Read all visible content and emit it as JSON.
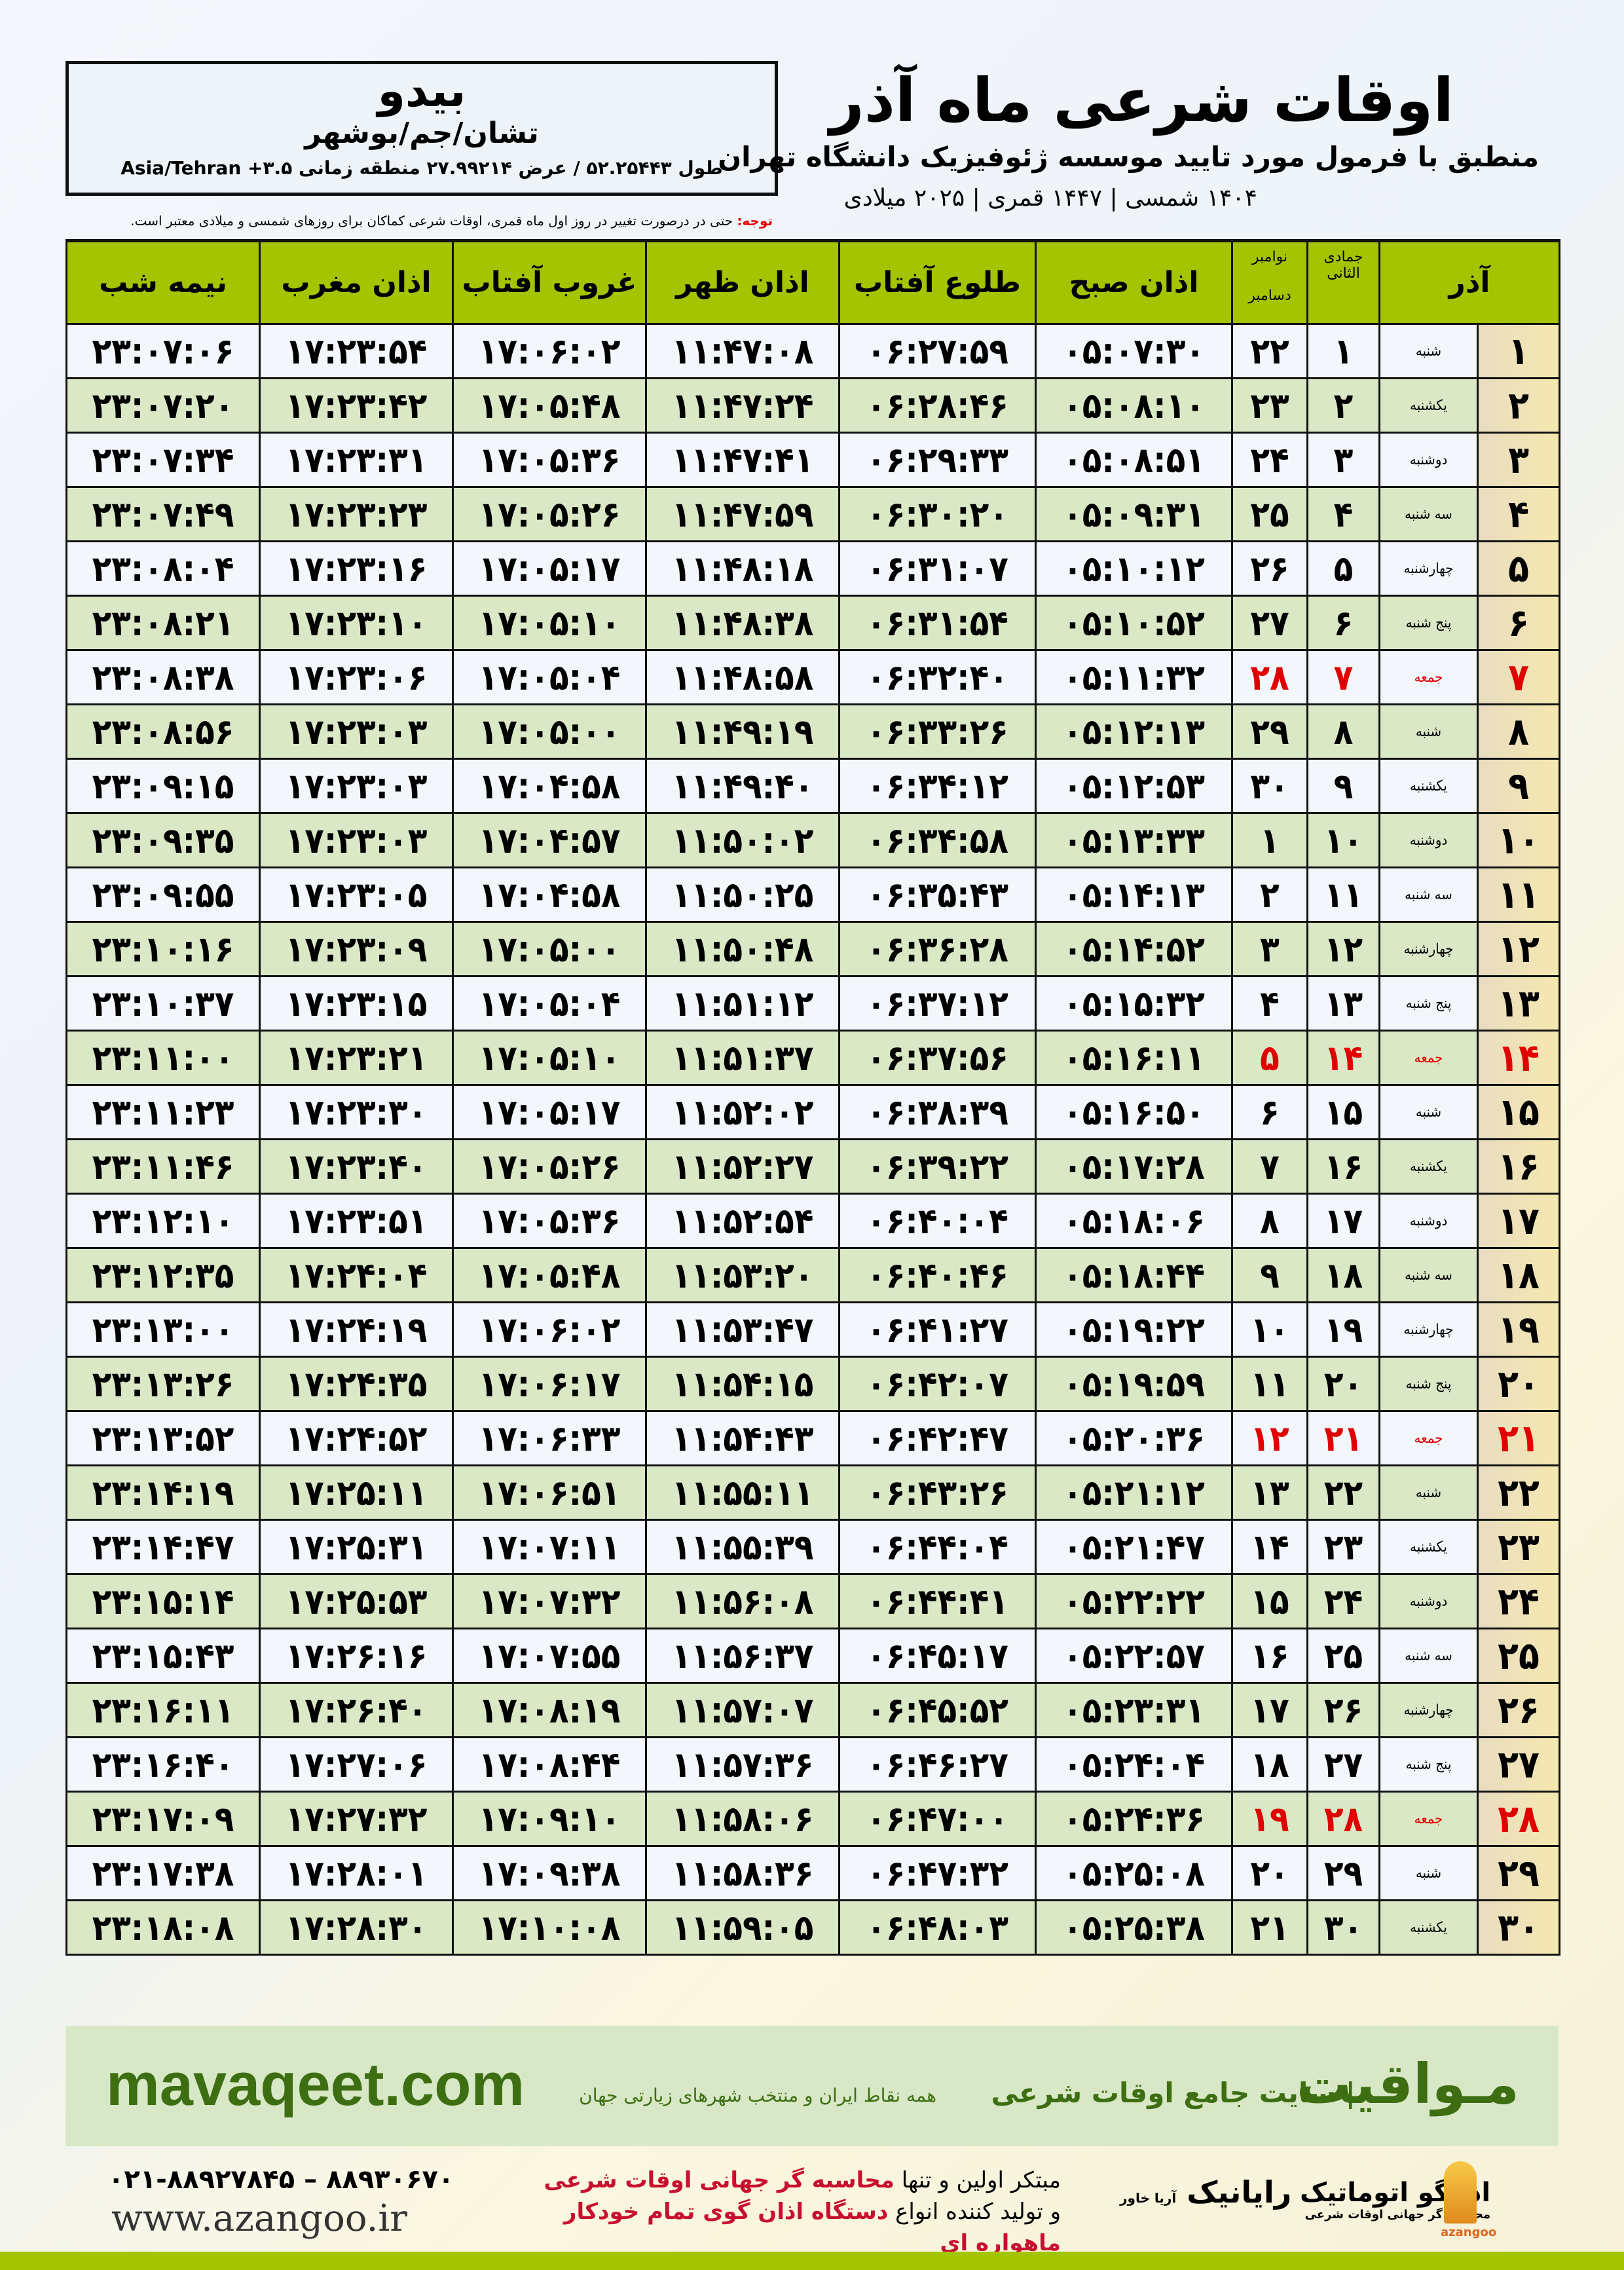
{
  "header": {
    "city": "بیدو",
    "region": "تشان/جم/بوشهر",
    "coordinates": "طول ۵۲.۲۵۴۴۳ / عرض ۲۷.۹۹۲۱۴ منطقه زمانی ۳.۵+ Asia/Tehran",
    "title": "اوقات شرعی ماه آذر",
    "subtitle": "منطبق با فرمول مورد تایید موسسه ژئوفیزیک دانشگاه تهران",
    "years": "۱۴۰۴ شمسی | ۱۴۴۷ قمری | ۲۰۲۵ میلادی",
    "note_label": "توجه:",
    "note_text": " حتی در درصورت تغییر در روز اول ماه قمری، اوقات شرعی کماکان برای روزهای شمسی و میلادی معتبر است."
  },
  "columns": {
    "shamsi_month": "آذر",
    "hijri_month": "جمادی الثانی",
    "gregorian_month_1": "نوامبر",
    "gregorian_month_2": "دسامبر",
    "fajr": "اذان صبح",
    "sunrise": "طلوع آفتاب",
    "dhuhr": "اذان ظهر",
    "sunset": "غروب آفتاب",
    "maghrib": "اذان مغرب",
    "midnight": "نیمه شب"
  },
  "colors": {
    "header_green": "#a4c400",
    "friday_red": "#e00000",
    "row_alt": "#dae8c6",
    "brand_green": "#3d6e12"
  },
  "rows": [
    {
      "day": "۱",
      "weekday": "شنبه",
      "hijri": "۱",
      "greg": "۲۲",
      "fajr": "۰۵:۰۷:۳۰",
      "sunrise": "۰۶:۲۷:۵۹",
      "dhuhr": "۱۱:۴۷:۰۸",
      "sunset": "۱۷:۰۶:۰۲",
      "maghrib": "۱۷:۲۳:۵۴",
      "midnight": "۲۳:۰۷:۰۶"
    },
    {
      "day": "۲",
      "weekday": "یکشنبه",
      "hijri": "۲",
      "greg": "۲۳",
      "fajr": "۰۵:۰۸:۱۰",
      "sunrise": "۰۶:۲۸:۴۶",
      "dhuhr": "۱۱:۴۷:۲۴",
      "sunset": "۱۷:۰۵:۴۸",
      "maghrib": "۱۷:۲۳:۴۲",
      "midnight": "۲۳:۰۷:۲۰"
    },
    {
      "day": "۳",
      "weekday": "دوشنبه",
      "hijri": "۳",
      "greg": "۲۴",
      "fajr": "۰۵:۰۸:۵۱",
      "sunrise": "۰۶:۲۹:۳۳",
      "dhuhr": "۱۱:۴۷:۴۱",
      "sunset": "۱۷:۰۵:۳۶",
      "maghrib": "۱۷:۲۳:۳۱",
      "midnight": "۲۳:۰۷:۳۴"
    },
    {
      "day": "۴",
      "weekday": "سه شنبه",
      "hijri": "۴",
      "greg": "۲۵",
      "fajr": "۰۵:۰۹:۳۱",
      "sunrise": "۰۶:۳۰:۲۰",
      "dhuhr": "۱۱:۴۷:۵۹",
      "sunset": "۱۷:۰۵:۲۶",
      "maghrib": "۱۷:۲۳:۲۳",
      "midnight": "۲۳:۰۷:۴۹"
    },
    {
      "day": "۵",
      "weekday": "چهارشنبه",
      "hijri": "۵",
      "greg": "۲۶",
      "fajr": "۰۵:۱۰:۱۲",
      "sunrise": "۰۶:۳۱:۰۷",
      "dhuhr": "۱۱:۴۸:۱۸",
      "sunset": "۱۷:۰۵:۱۷",
      "maghrib": "۱۷:۲۳:۱۶",
      "midnight": "۲۳:۰۸:۰۴"
    },
    {
      "day": "۶",
      "weekday": "پنج شنبه",
      "hijri": "۶",
      "greg": "۲۷",
      "fajr": "۰۵:۱۰:۵۲",
      "sunrise": "۰۶:۳۱:۵۴",
      "dhuhr": "۱۱:۴۸:۳۸",
      "sunset": "۱۷:۰۵:۱۰",
      "maghrib": "۱۷:۲۳:۱۰",
      "midnight": "۲۳:۰۸:۲۱"
    },
    {
      "day": "۷",
      "weekday": "جمعه",
      "hijri": "۷",
      "greg": "۲۸",
      "fajr": "۰۵:۱۱:۳۲",
      "sunrise": "۰۶:۳۲:۴۰",
      "dhuhr": "۱۱:۴۸:۵۸",
      "sunset": "۱۷:۰۵:۰۴",
      "maghrib": "۱۷:۲۳:۰۶",
      "midnight": "۲۳:۰۸:۳۸",
      "friday": true
    },
    {
      "day": "۸",
      "weekday": "شنبه",
      "hijri": "۸",
      "greg": "۲۹",
      "fajr": "۰۵:۱۲:۱۳",
      "sunrise": "۰۶:۳۳:۲۶",
      "dhuhr": "۱۱:۴۹:۱۹",
      "sunset": "۱۷:۰۵:۰۰",
      "maghrib": "۱۷:۲۳:۰۳",
      "midnight": "۲۳:۰۸:۵۶"
    },
    {
      "day": "۹",
      "weekday": "یکشنبه",
      "hijri": "۹",
      "greg": "۳۰",
      "fajr": "۰۵:۱۲:۵۳",
      "sunrise": "۰۶:۳۴:۱۲",
      "dhuhr": "۱۱:۴۹:۴۰",
      "sunset": "۱۷:۰۴:۵۸",
      "maghrib": "۱۷:۲۳:۰۳",
      "midnight": "۲۳:۰۹:۱۵"
    },
    {
      "day": "۱۰",
      "weekday": "دوشنبه",
      "hijri": "۱۰",
      "greg": "۱",
      "fajr": "۰۵:۱۳:۳۳",
      "sunrise": "۰۶:۳۴:۵۸",
      "dhuhr": "۱۱:۵۰:۰۲",
      "sunset": "۱۷:۰۴:۵۷",
      "maghrib": "۱۷:۲۳:۰۳",
      "midnight": "۲۳:۰۹:۳۵"
    },
    {
      "day": "۱۱",
      "weekday": "سه شنبه",
      "hijri": "۱۱",
      "greg": "۲",
      "fajr": "۰۵:۱۴:۱۳",
      "sunrise": "۰۶:۳۵:۴۳",
      "dhuhr": "۱۱:۵۰:۲۵",
      "sunset": "۱۷:۰۴:۵۸",
      "maghrib": "۱۷:۲۳:۰۵",
      "midnight": "۲۳:۰۹:۵۵"
    },
    {
      "day": "۱۲",
      "weekday": "چهارشنبه",
      "hijri": "۱۲",
      "greg": "۳",
      "fajr": "۰۵:۱۴:۵۲",
      "sunrise": "۰۶:۳۶:۲۸",
      "dhuhr": "۱۱:۵۰:۴۸",
      "sunset": "۱۷:۰۵:۰۰",
      "maghrib": "۱۷:۲۳:۰۹",
      "midnight": "۲۳:۱۰:۱۶"
    },
    {
      "day": "۱۳",
      "weekday": "پنج شنبه",
      "hijri": "۱۳",
      "greg": "۴",
      "fajr": "۰۵:۱۵:۳۲",
      "sunrise": "۰۶:۳۷:۱۲",
      "dhuhr": "۱۱:۵۱:۱۲",
      "sunset": "۱۷:۰۵:۰۴",
      "maghrib": "۱۷:۲۳:۱۵",
      "midnight": "۲۳:۱۰:۳۷"
    },
    {
      "day": "۱۴",
      "weekday": "جمعه",
      "hijri": "۱۴",
      "greg": "۵",
      "fajr": "۰۵:۱۶:۱۱",
      "sunrise": "۰۶:۳۷:۵۶",
      "dhuhr": "۱۱:۵۱:۳۷",
      "sunset": "۱۷:۰۵:۱۰",
      "maghrib": "۱۷:۲۳:۲۱",
      "midnight": "۲۳:۱۱:۰۰",
      "friday": true
    },
    {
      "day": "۱۵",
      "weekday": "شنبه",
      "hijri": "۱۵",
      "greg": "۶",
      "fajr": "۰۵:۱۶:۵۰",
      "sunrise": "۰۶:۳۸:۳۹",
      "dhuhr": "۱۱:۵۲:۰۲",
      "sunset": "۱۷:۰۵:۱۷",
      "maghrib": "۱۷:۲۳:۳۰",
      "midnight": "۲۳:۱۱:۲۳"
    },
    {
      "day": "۱۶",
      "weekday": "یکشنبه",
      "hijri": "۱۶",
      "greg": "۷",
      "fajr": "۰۵:۱۷:۲۸",
      "sunrise": "۰۶:۳۹:۲۲",
      "dhuhr": "۱۱:۵۲:۲۷",
      "sunset": "۱۷:۰۵:۲۶",
      "maghrib": "۱۷:۲۳:۴۰",
      "midnight": "۲۳:۱۱:۴۶"
    },
    {
      "day": "۱۷",
      "weekday": "دوشنبه",
      "hijri": "۱۷",
      "greg": "۸",
      "fajr": "۰۵:۱۸:۰۶",
      "sunrise": "۰۶:۴۰:۰۴",
      "dhuhr": "۱۱:۵۲:۵۴",
      "sunset": "۱۷:۰۵:۳۶",
      "maghrib": "۱۷:۲۳:۵۱",
      "midnight": "۲۳:۱۲:۱۰"
    },
    {
      "day": "۱۸",
      "weekday": "سه شنبه",
      "hijri": "۱۸",
      "greg": "۹",
      "fajr": "۰۵:۱۸:۴۴",
      "sunrise": "۰۶:۴۰:۴۶",
      "dhuhr": "۱۱:۵۳:۲۰",
      "sunset": "۱۷:۰۵:۴۸",
      "maghrib": "۱۷:۲۴:۰۴",
      "midnight": "۲۳:۱۲:۳۵"
    },
    {
      "day": "۱۹",
      "weekday": "چهارشنبه",
      "hijri": "۱۹",
      "greg": "۱۰",
      "fajr": "۰۵:۱۹:۲۲",
      "sunrise": "۰۶:۴۱:۲۷",
      "dhuhr": "۱۱:۵۳:۴۷",
      "sunset": "۱۷:۰۶:۰۲",
      "maghrib": "۱۷:۲۴:۱۹",
      "midnight": "۲۳:۱۳:۰۰"
    },
    {
      "day": "۲۰",
      "weekday": "پنج شنبه",
      "hijri": "۲۰",
      "greg": "۱۱",
      "fajr": "۰۵:۱۹:۵۹",
      "sunrise": "۰۶:۴۲:۰۷",
      "dhuhr": "۱۱:۵۴:۱۵",
      "sunset": "۱۷:۰۶:۱۷",
      "maghrib": "۱۷:۲۴:۳۵",
      "midnight": "۲۳:۱۳:۲۶"
    },
    {
      "day": "۲۱",
      "weekday": "جمعه",
      "hijri": "۲۱",
      "greg": "۱۲",
      "fajr": "۰۵:۲۰:۳۶",
      "sunrise": "۰۶:۴۲:۴۷",
      "dhuhr": "۱۱:۵۴:۴۳",
      "sunset": "۱۷:۰۶:۳۳",
      "maghrib": "۱۷:۲۴:۵۲",
      "midnight": "۲۳:۱۳:۵۲",
      "friday": true
    },
    {
      "day": "۲۲",
      "weekday": "شنبه",
      "hijri": "۲۲",
      "greg": "۱۳",
      "fajr": "۰۵:۲۱:۱۲",
      "sunrise": "۰۶:۴۳:۲۶",
      "dhuhr": "۱۱:۵۵:۱۱",
      "sunset": "۱۷:۰۶:۵۱",
      "maghrib": "۱۷:۲۵:۱۱",
      "midnight": "۲۳:۱۴:۱۹"
    },
    {
      "day": "۲۳",
      "weekday": "یکشنبه",
      "hijri": "۲۳",
      "greg": "۱۴",
      "fajr": "۰۵:۲۱:۴۷",
      "sunrise": "۰۶:۴۴:۰۴",
      "dhuhr": "۱۱:۵۵:۳۹",
      "sunset": "۱۷:۰۷:۱۱",
      "maghrib": "۱۷:۲۵:۳۱",
      "midnight": "۲۳:۱۴:۴۷"
    },
    {
      "day": "۲۴",
      "weekday": "دوشنبه",
      "hijri": "۲۴",
      "greg": "۱۵",
      "fajr": "۰۵:۲۲:۲۲",
      "sunrise": "۰۶:۴۴:۴۱",
      "dhuhr": "۱۱:۵۶:۰۸",
      "sunset": "۱۷:۰۷:۳۲",
      "maghrib": "۱۷:۲۵:۵۳",
      "midnight": "۲۳:۱۵:۱۴"
    },
    {
      "day": "۲۵",
      "weekday": "سه شنبه",
      "hijri": "۲۵",
      "greg": "۱۶",
      "fajr": "۰۵:۲۲:۵۷",
      "sunrise": "۰۶:۴۵:۱۷",
      "dhuhr": "۱۱:۵۶:۳۷",
      "sunset": "۱۷:۰۷:۵۵",
      "maghrib": "۱۷:۲۶:۱۶",
      "midnight": "۲۳:۱۵:۴۳"
    },
    {
      "day": "۲۶",
      "weekday": "چهارشنبه",
      "hijri": "۲۶",
      "greg": "۱۷",
      "fajr": "۰۵:۲۳:۳۱",
      "sunrise": "۰۶:۴۵:۵۲",
      "dhuhr": "۱۱:۵۷:۰۷",
      "sunset": "۱۷:۰۸:۱۹",
      "maghrib": "۱۷:۲۶:۴۰",
      "midnight": "۲۳:۱۶:۱۱"
    },
    {
      "day": "۲۷",
      "weekday": "پنج شنبه",
      "hijri": "۲۷",
      "greg": "۱۸",
      "fajr": "۰۵:۲۴:۰۴",
      "sunrise": "۰۶:۴۶:۲۷",
      "dhuhr": "۱۱:۵۷:۳۶",
      "sunset": "۱۷:۰۸:۴۴",
      "maghrib": "۱۷:۲۷:۰۶",
      "midnight": "۲۳:۱۶:۴۰"
    },
    {
      "day": "۲۸",
      "weekday": "جمعه",
      "hijri": "۲۸",
      "greg": "۱۹",
      "fajr": "۰۵:۲۴:۳۶",
      "sunrise": "۰۶:۴۷:۰۰",
      "dhuhr": "۱۱:۵۸:۰۶",
      "sunset": "۱۷:۰۹:۱۰",
      "maghrib": "۱۷:۲۷:۳۲",
      "midnight": "۲۳:۱۷:۰۹",
      "friday": true
    },
    {
      "day": "۲۹",
      "weekday": "شنبه",
      "hijri": "۲۹",
      "greg": "۲۰",
      "fajr": "۰۵:۲۵:۰۸",
      "sunrise": "۰۶:۴۷:۳۲",
      "dhuhr": "۱۱:۵۸:۳۶",
      "sunset": "۱۷:۰۹:۳۸",
      "maghrib": "۱۷:۲۸:۰۱",
      "midnight": "۲۳:۱۷:۳۸"
    },
    {
      "day": "۳۰",
      "weekday": "یکشنبه",
      "hijri": "۳۰",
      "greg": "۲۱",
      "fajr": "۰۵:۲۵:۳۸",
      "sunrise": "۰۶:۴۸:۰۳",
      "dhuhr": "۱۱:۵۹:۰۵",
      "sunset": "۱۷:۱۰:۰۸",
      "maghrib": "۱۷:۲۸:۳۰",
      "midnight": "۲۳:۱۸:۰۸"
    }
  ],
  "footer": {
    "site": "mavaqeet.com",
    "brand": "مـواقیت",
    "brand_tagline": "| سایت جامع اوقات شرعی",
    "brand_sub": "همه نقاط ایران و منتخب شهرهای زیارتی جهان",
    "phone": "۰۲۱-۸۸۹۲۷۸۴۵ – ۸۸۹۳۰۶۷۰",
    "web": "www.azangoo.ir",
    "promo_1a": "مبتکر اولین و تنها ",
    "promo_1b": "محاسبه گر جهانی اوقات شرعی",
    "promo_2a": "و تولید کننده انواع ",
    "promo_2b": "دستگاه اذان گوی تمام خودکار ماهواره ای",
    "logo_rayanik": "رایانیک",
    "logo_rayanik_sub": "آریا خاور",
    "logo_azangoo": "اذانگو اتوماتیک",
    "logo_azangoo_sub": "محاسبه گر جهانی اوقات شرعی",
    "logo_azangoo_latin": "azangoo"
  }
}
